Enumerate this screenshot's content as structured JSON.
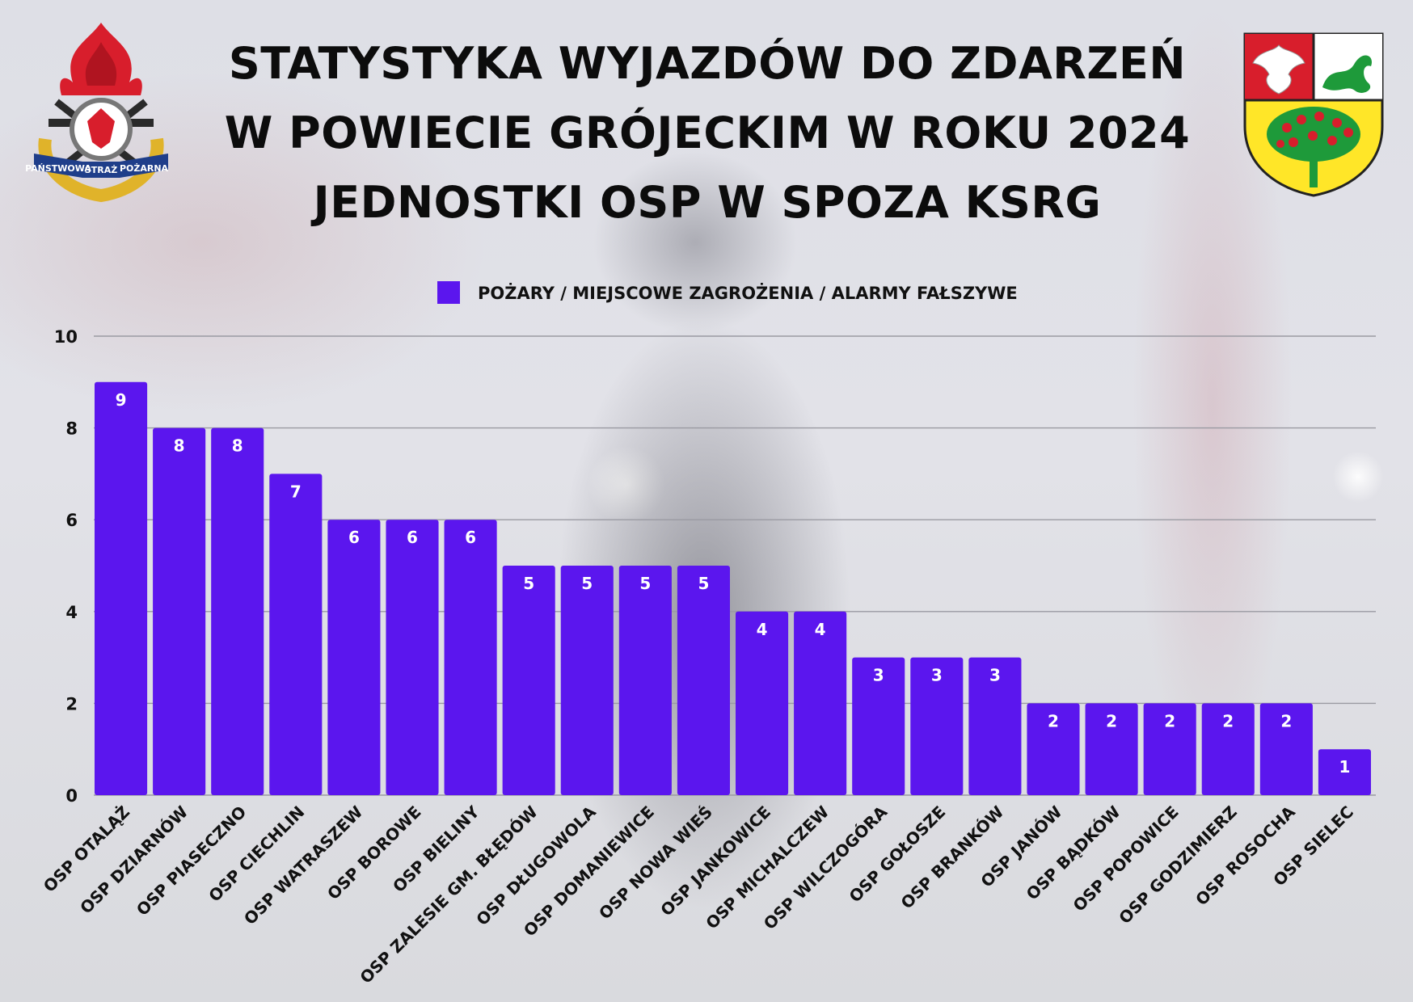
{
  "title": {
    "line1": "STATYSTYKA WYJAZDÓW DO ZDARZEŃ",
    "line2": "W POWIECIE GRÓJECKIM W ROKU 2024",
    "line3": "JEDNOSTKI OSP W SPOZA KSRG"
  },
  "logos": {
    "left": {
      "text_left": "PAŃSTWOWA",
      "text_mid": "STRAŻ",
      "text_right": "POŻARNA"
    }
  },
  "colors": {
    "bar": "#5b16ee",
    "grid": "#9a9aa2",
    "text": "#111111"
  },
  "chart_data": {
    "type": "bar",
    "title": "",
    "xlabel": "",
    "ylabel": "",
    "ylim": [
      0,
      10
    ],
    "yticks": [
      0,
      2,
      4,
      6,
      8,
      10
    ],
    "grid": true,
    "legend_position": "top-center",
    "series": [
      {
        "name": "POŻARY / MIEJSCOWE ZAGROŻENIA / ALARMY FAŁSZYWE",
        "values": [
          9,
          8,
          8,
          7,
          6,
          6,
          6,
          5,
          5,
          5,
          5,
          4,
          4,
          3,
          3,
          3,
          2,
          2,
          2,
          2,
          2,
          1
        ]
      }
    ],
    "categories": [
      "OSP OTALĄŻ",
      "OSP DZIARNÓW",
      "OSP PIASECZNO",
      "OSP CIECHLIN",
      "OSP WATRASZEW",
      "OSP BOROWE",
      "OSP BIELINY",
      "OSP ZALESIE GM. BŁĘDÓW",
      "OSP DŁUGOWOLA",
      "OSP DOMANIEWICE",
      "OSP NOWA WIEŚ",
      "OSP JANKOWICE",
      "OSP MICHALCZEW",
      "OSP WILCZOGÓRA",
      "OSP GOŁOSZE",
      "OSP BRANKÓW",
      "OSP JANÓW",
      "OSP BĄDKÓW",
      "OSP POPOWICE",
      "OSP GODZIMIERZ",
      "OSP ROSOCHA",
      "OSP SIELEC"
    ]
  }
}
